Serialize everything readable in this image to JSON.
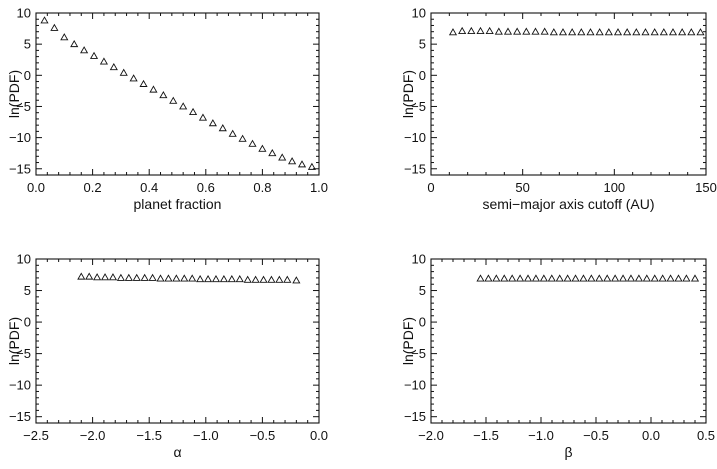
{
  "chart_data": [
    {
      "type": "scatter",
      "marker": "open-triangle",
      "xlabel": "planet fraction",
      "ylabel": "ln(PDF)",
      "xlim": [
        0.0,
        1.0
      ],
      "ylim": [
        -16,
        10
      ],
      "xticks": [
        0.0,
        0.2,
        0.4,
        0.6,
        0.8,
        1.0
      ],
      "xtick_labels": [
        "0.0",
        "0.2",
        "0.4",
        "0.6",
        "0.8",
        "1.0"
      ],
      "yticks": [
        10,
        5,
        0,
        -5,
        -10,
        -15
      ],
      "ytick_labels": [
        "10",
        "5",
        "0",
        "−5",
        "−10",
        "−15"
      ],
      "x": [
        0.03,
        0.065,
        0.1,
        0.135,
        0.17,
        0.205,
        0.24,
        0.275,
        0.31,
        0.345,
        0.38,
        0.415,
        0.45,
        0.485,
        0.52,
        0.555,
        0.59,
        0.625,
        0.66,
        0.695,
        0.73,
        0.765,
        0.8,
        0.835,
        0.87,
        0.905,
        0.94,
        0.975
      ],
      "y": [
        8.8,
        7.6,
        6.1,
        5.0,
        4.0,
        3.1,
        2.2,
        1.3,
        0.4,
        -0.5,
        -1.4,
        -2.3,
        -3.2,
        -4.1,
        -5.0,
        -5.9,
        -6.8,
        -7.7,
        -8.5,
        -9.4,
        -10.2,
        -11.0,
        -11.8,
        -12.5,
        -13.2,
        -13.8,
        -14.3,
        -14.7
      ]
    },
    {
      "type": "scatter",
      "marker": "open-triangle",
      "xlabel": "semi−major axis cutoff (AU)",
      "ylabel": "ln(PDF)",
      "xlim": [
        0,
        150
      ],
      "ylim": [
        -16,
        10
      ],
      "xticks": [
        0,
        50,
        100,
        150
      ],
      "xtick_labels": [
        "0",
        "50",
        "100",
        "150"
      ],
      "yticks": [
        10,
        5,
        0,
        -5,
        -10,
        -15
      ],
      "ytick_labels": [
        "10",
        "5",
        "0",
        "−5",
        "−10",
        "−15"
      ],
      "x": [
        12,
        17,
        22,
        27,
        32,
        37,
        42,
        47,
        52,
        57,
        62,
        67,
        72,
        77,
        82,
        87,
        92,
        97,
        102,
        107,
        112,
        117,
        122,
        127,
        132,
        137,
        142,
        147
      ],
      "y": [
        6.9,
        7.1,
        7.1,
        7.1,
        7.1,
        7.0,
        7.0,
        7.0,
        7.0,
        7.0,
        7.0,
        6.9,
        6.9,
        6.9,
        6.9,
        6.9,
        6.9,
        6.9,
        6.9,
        6.9,
        6.9,
        6.9,
        6.9,
        6.9,
        6.9,
        6.9,
        6.9,
        6.9
      ]
    },
    {
      "type": "scatter",
      "marker": "open-triangle",
      "xlabel": "α",
      "ylabel": "ln(PDF)",
      "xlim": [
        -2.5,
        0.0
      ],
      "ylim": [
        -16,
        10
      ],
      "xticks": [
        -2.5,
        -2.0,
        -1.5,
        -1.0,
        -0.5,
        0.0
      ],
      "xtick_labels": [
        "−2.5",
        "−2.0",
        "−1.5",
        "−1.0",
        "−0.5",
        "0.0"
      ],
      "yticks": [
        10,
        5,
        0,
        -5,
        -10,
        -15
      ],
      "ytick_labels": [
        "10",
        "5",
        "0",
        "−5",
        "−10",
        "−15"
      ],
      "x": [
        -2.1,
        -2.03,
        -1.96,
        -1.89,
        -1.82,
        -1.75,
        -1.68,
        -1.61,
        -1.54,
        -1.47,
        -1.4,
        -1.33,
        -1.26,
        -1.19,
        -1.12,
        -1.05,
        -0.98,
        -0.91,
        -0.84,
        -0.77,
        -0.7,
        -0.63,
        -0.56,
        -0.49,
        -0.42,
        -0.35,
        -0.28,
        -0.2
      ],
      "y": [
        7.2,
        7.2,
        7.1,
        7.1,
        7.1,
        7.0,
        7.0,
        7.0,
        7.0,
        7.0,
        6.9,
        6.9,
        6.9,
        6.9,
        6.9,
        6.8,
        6.8,
        6.8,
        6.8,
        6.8,
        6.8,
        6.7,
        6.7,
        6.7,
        6.7,
        6.7,
        6.7,
        6.6
      ]
    },
    {
      "type": "scatter",
      "marker": "open-triangle",
      "xlabel": "β",
      "ylabel": "ln(PDF)",
      "xlim": [
        -2.0,
        0.5
      ],
      "ylim": [
        -16,
        10
      ],
      "xticks": [
        -2.0,
        -1.5,
        -1.0,
        -0.5,
        0.0,
        0.5
      ],
      "xtick_labels": [
        "−2.0",
        "−1.5",
        "−1.0",
        "−0.5",
        "0.0",
        "0.5"
      ],
      "yticks": [
        10,
        5,
        0,
        -5,
        -10,
        -15
      ],
      "ytick_labels": [
        "10",
        "5",
        "0",
        "−5",
        "−10",
        "−15"
      ],
      "x": [
        -1.55,
        -1.478,
        -1.406,
        -1.334,
        -1.262,
        -1.19,
        -1.118,
        -1.046,
        -0.974,
        -0.902,
        -0.83,
        -0.758,
        -0.686,
        -0.614,
        -0.542,
        -0.47,
        -0.398,
        -0.326,
        -0.254,
        -0.182,
        -0.11,
        -0.038,
        0.034,
        0.106,
        0.178,
        0.25,
        0.322,
        0.4
      ],
      "y": [
        6.9,
        6.9,
        6.9,
        6.9,
        6.9,
        6.9,
        6.9,
        6.9,
        6.9,
        6.9,
        6.9,
        6.9,
        6.9,
        6.9,
        6.9,
        6.9,
        6.9,
        6.9,
        6.9,
        6.9,
        6.9,
        6.9,
        6.9,
        6.9,
        6.9,
        6.9,
        6.9,
        6.9
      ]
    }
  ]
}
